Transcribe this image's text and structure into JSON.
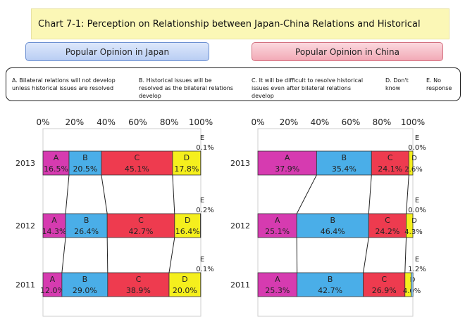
{
  "title": "Chart 7-1: Perception on Relationship between Japan-China Relations and Historical Issues",
  "panels": {
    "japan": "Popular Opinion in Japan",
    "china": "Popular Opinion in China"
  },
  "legend": {
    "A": "A. Bilateral relations will not develop unless historical issues are resolved",
    "B": "B. Historical issues will be resolved as the bilateral relations develop",
    "C": "C. It will be difficult to resolve historical issues even after bilateral relations develop",
    "D": "D. Don't know",
    "E": "E. No response"
  },
  "colors": {
    "A": "#d63bb0",
    "B": "#4aaee8",
    "C": "#ee3b4f",
    "D": "#f5ef1d",
    "E": "#8cc8ec"
  },
  "chart_data": [
    {
      "type": "bar",
      "stacked": true,
      "orientation": "horizontal",
      "panel": "Popular Opinion in Japan",
      "categories": [
        "2013",
        "2012",
        "2011"
      ],
      "xlim": [
        0,
        100
      ],
      "x_ticks": [
        "0%",
        "20%",
        "40%",
        "60%",
        "80%",
        "100%"
      ],
      "series": [
        {
          "name": "A",
          "values": [
            16.5,
            14.3,
            12.0
          ],
          "labels": [
            "16.5%",
            "14.3%",
            "12.0%"
          ]
        },
        {
          "name": "B",
          "values": [
            20.5,
            26.4,
            29.0
          ],
          "labels": [
            "20.5%",
            "26.4%",
            "29.0%"
          ]
        },
        {
          "name": "C",
          "values": [
            45.1,
            42.7,
            38.9
          ],
          "labels": [
            "45.1%",
            "42.7%",
            "38.9%"
          ]
        },
        {
          "name": "D",
          "values": [
            17.8,
            16.4,
            20.0
          ],
          "labels": [
            "17.8%",
            "16.4%",
            "20.0%"
          ]
        },
        {
          "name": "E",
          "values": [
            0.1,
            0.2,
            0.1
          ],
          "labels": [
            "0.1%",
            "0.2%",
            "0.1%"
          ]
        }
      ]
    },
    {
      "type": "bar",
      "stacked": true,
      "orientation": "horizontal",
      "panel": "Popular Opinion in China",
      "categories": [
        "2013",
        "2012",
        "2011"
      ],
      "xlim": [
        0,
        100
      ],
      "x_ticks": [
        "0%",
        "20%",
        "40%",
        "60%",
        "80%",
        "100%"
      ],
      "series": [
        {
          "name": "A",
          "values": [
            37.9,
            25.1,
            25.3
          ],
          "labels": [
            "37.9%",
            "25.1%",
            "25.3%"
          ]
        },
        {
          "name": "B",
          "values": [
            35.4,
            46.4,
            42.7
          ],
          "labels": [
            "35.4%",
            "46.4%",
            "42.7%"
          ]
        },
        {
          "name": "C",
          "values": [
            24.1,
            24.2,
            26.9
          ],
          "labels": [
            "24.1%",
            "24.2%",
            "26.9%"
          ]
        },
        {
          "name": "D",
          "values": [
            2.6,
            4.3,
            4.0
          ],
          "labels": [
            "2.6%",
            "4.3%",
            "4.0%"
          ]
        },
        {
          "name": "E",
          "values": [
            0.0,
            0.0,
            1.2
          ],
          "labels": [
            "0.0%",
            "0.0%",
            "1.2%"
          ]
        }
      ]
    }
  ]
}
